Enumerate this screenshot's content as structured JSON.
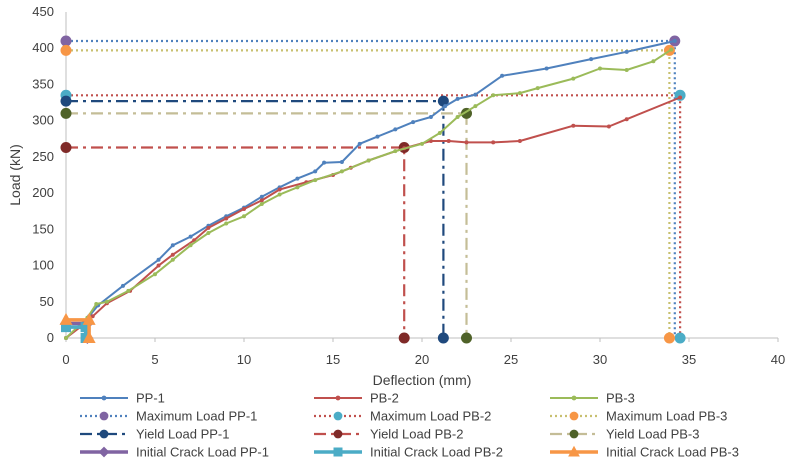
{
  "chart_data": {
    "type": "line",
    "title": "",
    "xlabel": "Deflection  (mm)",
    "ylabel": "Load (kN)",
    "xlim": [
      0,
      40
    ],
    "ylim": [
      0,
      450
    ],
    "xticks": [
      0,
      5,
      10,
      15,
      20,
      25,
      30,
      35,
      40
    ],
    "yticks": [
      0,
      50,
      100,
      150,
      200,
      250,
      300,
      350,
      400,
      450
    ],
    "grid": false,
    "legend_position": "bottom",
    "series": [
      {
        "name": "PP-1",
        "style": "solid-dot",
        "color": "#4f81bd",
        "points": [
          [
            0,
            0
          ],
          [
            0.7,
            15
          ],
          [
            1.3,
            30
          ],
          [
            1.8,
            45
          ],
          [
            3.2,
            72
          ],
          [
            5.2,
            108
          ],
          [
            6.0,
            128
          ],
          [
            7.0,
            140
          ],
          [
            8.0,
            155
          ],
          [
            9.0,
            168
          ],
          [
            10.0,
            180
          ],
          [
            11.0,
            195
          ],
          [
            12.0,
            208
          ],
          [
            13.0,
            220
          ],
          [
            14.0,
            230
          ],
          [
            14.5,
            242
          ],
          [
            15.5,
            243
          ],
          [
            16.5,
            268
          ],
          [
            17.5,
            278
          ],
          [
            18.5,
            288
          ],
          [
            19.5,
            298
          ],
          [
            20.5,
            305
          ],
          [
            21.3,
            320
          ],
          [
            22.0,
            330
          ],
          [
            23.0,
            336
          ],
          [
            24.5,
            362
          ],
          [
            27.0,
            372
          ],
          [
            29.5,
            385
          ],
          [
            31.5,
            395
          ],
          [
            34.2,
            410
          ]
        ]
      },
      {
        "name": "PB-2",
        "style": "solid-dot",
        "color": "#c0504d",
        "points": [
          [
            0,
            0
          ],
          [
            0.8,
            15
          ],
          [
            1.5,
            30
          ],
          [
            2.3,
            48
          ],
          [
            3.6,
            65
          ],
          [
            5.2,
            100
          ],
          [
            6.0,
            115
          ],
          [
            7.2,
            135
          ],
          [
            8.0,
            152
          ],
          [
            9.0,
            165
          ],
          [
            10.0,
            178
          ],
          [
            11.0,
            190
          ],
          [
            12.0,
            205
          ],
          [
            13.5,
            215
          ],
          [
            15.0,
            225
          ],
          [
            16.0,
            235
          ],
          [
            17.0,
            245
          ],
          [
            19.0,
            262
          ],
          [
            20.5,
            272
          ],
          [
            21.5,
            272
          ],
          [
            22.5,
            270
          ],
          [
            24.0,
            270
          ],
          [
            25.5,
            272
          ],
          [
            28.5,
            293
          ],
          [
            30.5,
            292
          ],
          [
            31.5,
            302
          ],
          [
            34.5,
            332
          ]
        ]
      },
      {
        "name": "PB-3",
        "style": "solid-dot",
        "color": "#9bbb59",
        "points": [
          [
            0,
            0
          ],
          [
            1.2,
            28
          ],
          [
            1.7,
            47
          ],
          [
            2.3,
            50
          ],
          [
            3.5,
            65
          ],
          [
            5.0,
            88
          ],
          [
            6.0,
            108
          ],
          [
            7.0,
            128
          ],
          [
            8.0,
            145
          ],
          [
            9.0,
            158
          ],
          [
            10.0,
            168
          ],
          [
            11.0,
            185
          ],
          [
            12.0,
            198
          ],
          [
            13.0,
            208
          ],
          [
            14.0,
            218
          ],
          [
            15.5,
            230
          ],
          [
            17.0,
            245
          ],
          [
            18.5,
            258
          ],
          [
            20.0,
            268
          ],
          [
            21.0,
            283
          ],
          [
            22.0,
            305
          ],
          [
            23.0,
            320
          ],
          [
            24.0,
            335
          ],
          [
            25.5,
            338
          ],
          [
            26.5,
            345
          ],
          [
            28.5,
            358
          ],
          [
            30.0,
            372
          ],
          [
            31.5,
            370
          ],
          [
            33.0,
            382
          ],
          [
            34.0,
            398
          ]
        ]
      },
      {
        "name": "Maximum Load PP-1",
        "style": "dotted",
        "color": "#4f81bd",
        "points": [
          [
            0,
            410
          ],
          [
            34.2,
            410
          ],
          [
            34.2,
            0
          ]
        ],
        "markers": [
          [
            0,
            410
          ],
          [
            34.2,
            410
          ]
        ],
        "marker_color": "#8064a2"
      },
      {
        "name": "Maximum Load PB-2",
        "style": "dotted",
        "color": "#c0504d",
        "points": [
          [
            0,
            335
          ],
          [
            34.5,
            335
          ],
          [
            34.5,
            0
          ]
        ],
        "markers": [
          [
            0,
            335
          ],
          [
            34.5,
            335
          ],
          [
            34.5,
            0
          ]
        ],
        "marker_color": "#4bacc6"
      },
      {
        "name": "Maximum Load PB-3",
        "style": "dotted",
        "color": "#c8c070",
        "points": [
          [
            0,
            397
          ],
          [
            33.9,
            397
          ],
          [
            33.9,
            0
          ]
        ],
        "markers": [
          [
            0,
            397
          ],
          [
            33.9,
            397
          ],
          [
            33.9,
            0
          ]
        ],
        "marker_color": "#f79646"
      },
      {
        "name": "Yield Load PP-1",
        "style": "dashdot",
        "color": "#1f497d",
        "points": [
          [
            0,
            327
          ],
          [
            21.2,
            327
          ],
          [
            21.2,
            0
          ]
        ],
        "markers": [
          [
            0,
            327
          ],
          [
            21.2,
            327
          ],
          [
            21.2,
            0
          ]
        ],
        "marker_color": "#1f497d"
      },
      {
        "name": "Yield Load PB-2",
        "style": "dashdot",
        "color": "#c0504d",
        "points": [
          [
            0,
            263
          ],
          [
            19.0,
            263
          ],
          [
            19.0,
            0
          ]
        ],
        "markers": [
          [
            0,
            263
          ],
          [
            19.0,
            263
          ],
          [
            19.0,
            0
          ]
        ],
        "marker_color": "#7f2a28"
      },
      {
        "name": "Yield Load PB-3",
        "style": "dashdot",
        "color": "#c4bd97",
        "points": [
          [
            0,
            310
          ],
          [
            22.5,
            310
          ],
          [
            22.5,
            0
          ]
        ],
        "markers": [
          [
            0,
            310
          ],
          [
            22.5,
            310
          ],
          [
            22.5,
            0
          ]
        ],
        "marker_color": "#4f6228"
      },
      {
        "name": "Initial Crack Load PP-1",
        "style": "thick-diamond",
        "color": "#8064a2",
        "points": [
          [
            0,
            20
          ],
          [
            1.2,
            20
          ],
          [
            1.2,
            0
          ]
        ],
        "markers": [
          [
            0,
            20
          ],
          [
            1.2,
            20
          ],
          [
            1.2,
            0
          ]
        ],
        "marker_color": "#8064a2"
      },
      {
        "name": "Initial Crack Load PB-2",
        "style": "thick-square",
        "color": "#4bacc6",
        "points": [
          [
            0,
            15
          ],
          [
            1.1,
            15
          ],
          [
            1.1,
            0
          ]
        ],
        "markers": [
          [
            0,
            15
          ],
          [
            1.1,
            15
          ],
          [
            1.1,
            0
          ]
        ],
        "marker_color": "#4bacc6"
      },
      {
        "name": "Initial Crack Load PB-3",
        "style": "thick-triangle",
        "color": "#f79646",
        "points": [
          [
            0,
            25
          ],
          [
            1.3,
            25
          ],
          [
            1.3,
            0
          ]
        ],
        "markers": [
          [
            0,
            25
          ],
          [
            1.3,
            25
          ],
          [
            1.3,
            0
          ]
        ],
        "marker_color": "#f79646"
      }
    ]
  }
}
